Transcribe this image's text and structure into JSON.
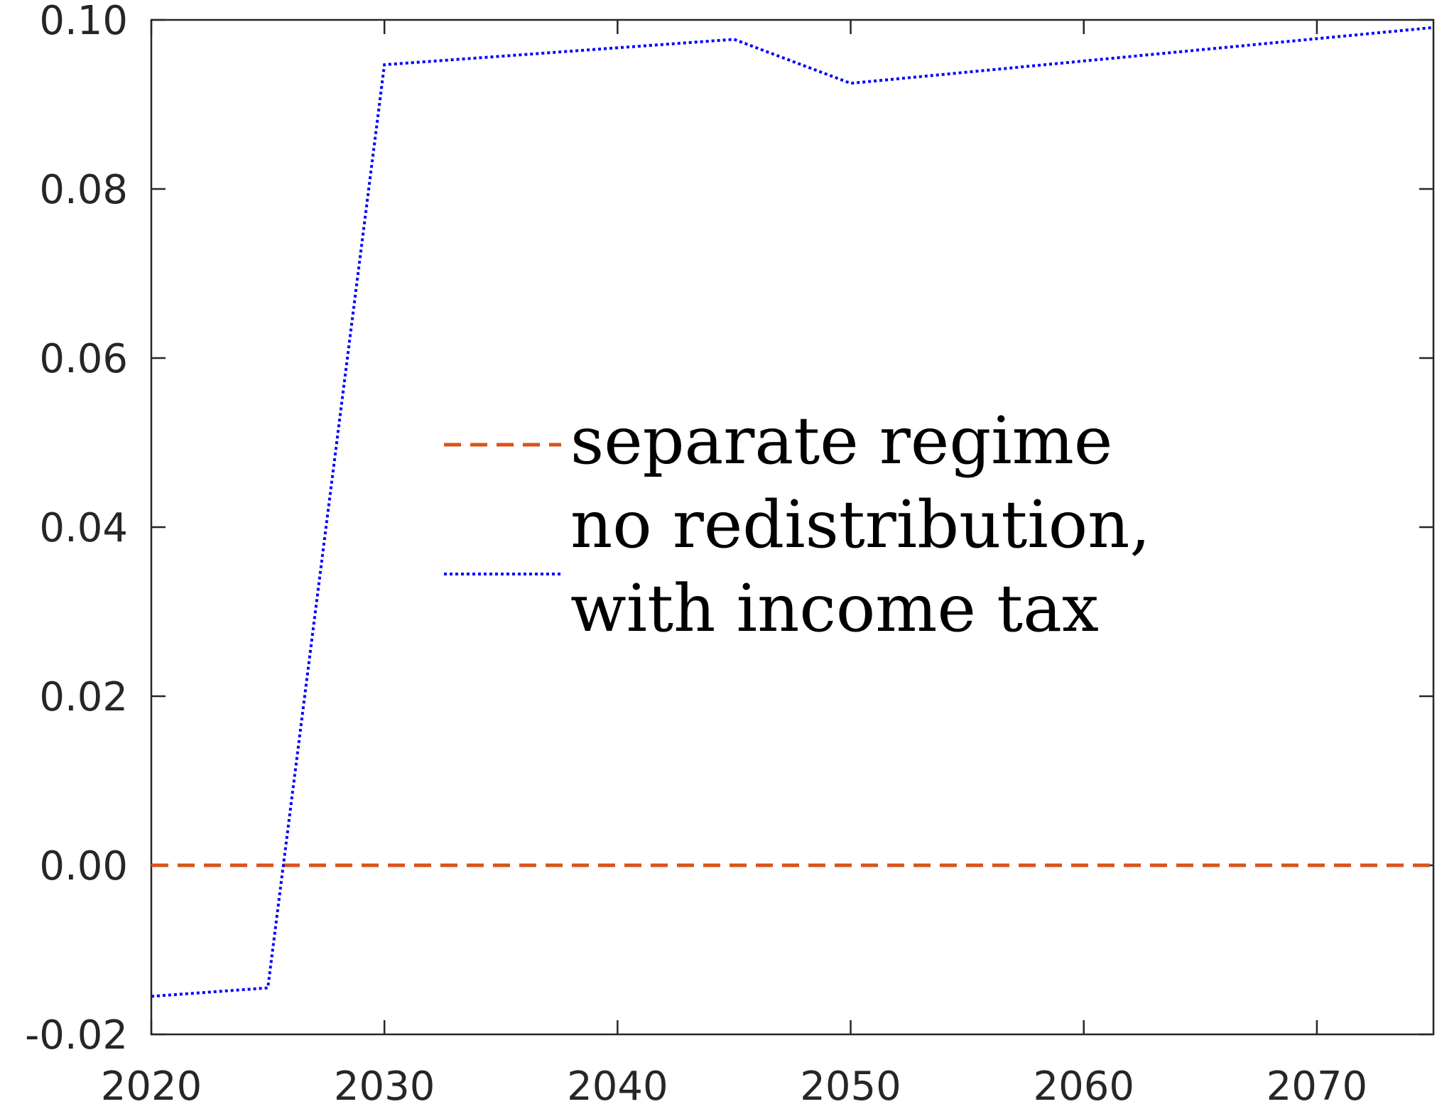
{
  "chart_data": {
    "type": "line",
    "title": "",
    "xlabel": "",
    "ylabel": "",
    "xlim": [
      2020,
      2075
    ],
    "ylim": [
      -0.02,
      0.1
    ],
    "x_ticks": [
      2020,
      2030,
      2040,
      2050,
      2060,
      2070
    ],
    "x_tick_labels": [
      "2020",
      "2030",
      "2040",
      "2050",
      "2060",
      "2070"
    ],
    "y_ticks": [
      -0.02,
      0.0,
      0.02,
      0.04,
      0.06,
      0.08,
      0.1
    ],
    "y_tick_labels": [
      "-0.02",
      "0.00",
      "0.02",
      "0.04",
      "0.06",
      "0.08",
      "0.10"
    ],
    "grid": false,
    "legend_position": "center",
    "series": [
      {
        "name": "separate regime",
        "color": "#D95319",
        "line_style": "dashed",
        "x": [
          2020,
          2075
        ],
        "y": [
          0.0,
          0.0
        ]
      },
      {
        "name": "no redistribution, with income tax",
        "legend_lines": [
          "no redistribution,",
          "with income tax"
        ],
        "color": "#0000FF",
        "line_style": "dotted",
        "x": [
          2020,
          2025,
          2030,
          2045,
          2050,
          2075
        ],
        "y": [
          -0.0155,
          -0.0145,
          0.0947,
          0.0977,
          0.0925,
          0.0991
        ]
      }
    ]
  }
}
